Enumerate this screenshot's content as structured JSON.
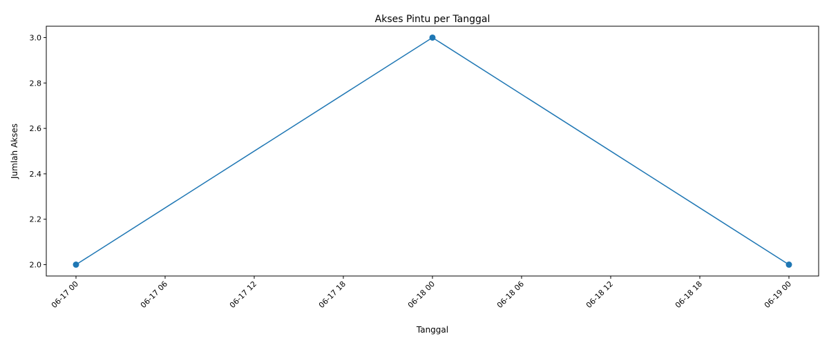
{
  "chart_data": {
    "type": "line",
    "title": "Akses Pintu per Tanggal",
    "xlabel": "Tanggal",
    "ylabel": "Jumlah Akses",
    "x": [
      "2024-06-17 00:00",
      "2024-06-18 00:00",
      "2024-06-19 00:00"
    ],
    "series": [
      {
        "values": [
          2,
          3,
          2
        ],
        "color": "#1f77b4",
        "marker": "circle"
      }
    ],
    "xlim": [
      "2024-06-16 22:00",
      "2024-06-19 02:00"
    ],
    "ylim": [
      1.95,
      3.05
    ],
    "xticks": [
      "06-17 00",
      "06-17 06",
      "06-17 12",
      "06-17 18",
      "06-18 00",
      "06-18 06",
      "06-18 12",
      "06-18 18",
      "06-19 00"
    ],
    "yticks": [
      "2.0",
      "2.2",
      "2.4",
      "2.6",
      "2.8",
      "3.0"
    ],
    "grid": false,
    "legend": false
  }
}
